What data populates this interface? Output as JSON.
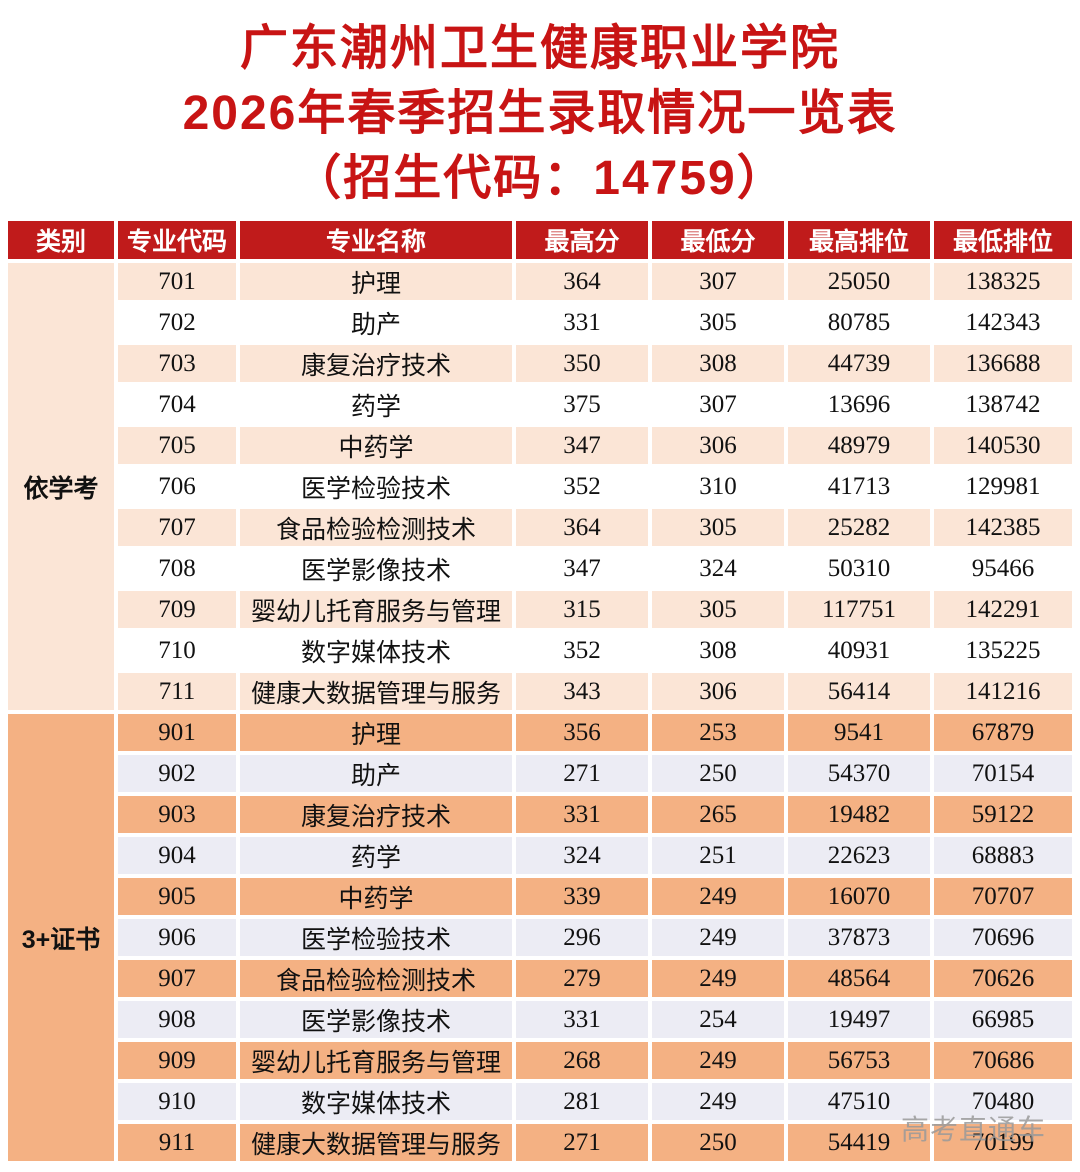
{
  "title": {
    "line1": "广东潮州卫生健康职业学院",
    "line2": "2026年春季招生录取情况一览表",
    "line3": "（招生代码：14759）"
  },
  "table": {
    "headers": [
      "类别",
      "专业代码",
      "专业名称",
      "最高分",
      "最低分",
      "最高排位",
      "最低排位"
    ],
    "sections": [
      {
        "category": "依学考",
        "rows": [
          [
            "701",
            "护理",
            "364",
            "307",
            "25050",
            "138325"
          ],
          [
            "702",
            "助产",
            "331",
            "305",
            "80785",
            "142343"
          ],
          [
            "703",
            "康复治疗技术",
            "350",
            "308",
            "44739",
            "136688"
          ],
          [
            "704",
            "药学",
            "375",
            "307",
            "13696",
            "138742"
          ],
          [
            "705",
            "中药学",
            "347",
            "306",
            "48979",
            "140530"
          ],
          [
            "706",
            "医学检验技术",
            "352",
            "310",
            "41713",
            "129981"
          ],
          [
            "707",
            "食品检验检测技术",
            "364",
            "305",
            "25282",
            "142385"
          ],
          [
            "708",
            "医学影像技术",
            "347",
            "324",
            "50310",
            "95466"
          ],
          [
            "709",
            "婴幼儿托育服务与管理",
            "315",
            "305",
            "117751",
            "142291"
          ],
          [
            "710",
            "数字媒体技术",
            "352",
            "308",
            "40931",
            "135225"
          ],
          [
            "711",
            "健康大数据管理与服务",
            "343",
            "306",
            "56414",
            "141216"
          ]
        ]
      },
      {
        "category": "3+证书",
        "rows": [
          [
            "901",
            "护理",
            "356",
            "253",
            "9541",
            "67879"
          ],
          [
            "902",
            "助产",
            "271",
            "250",
            "54370",
            "70154"
          ],
          [
            "903",
            "康复治疗技术",
            "331",
            "265",
            "19482",
            "59122"
          ],
          [
            "904",
            "药学",
            "324",
            "251",
            "22623",
            "68883"
          ],
          [
            "905",
            "中药学",
            "339",
            "249",
            "16070",
            "70707"
          ],
          [
            "906",
            "医学检验技术",
            "296",
            "249",
            "37873",
            "70696"
          ],
          [
            "907",
            "食品检验检测技术",
            "279",
            "249",
            "48564",
            "70626"
          ],
          [
            "908",
            "医学影像技术",
            "331",
            "254",
            "19497",
            "66985"
          ],
          [
            "909",
            "婴幼儿托育服务与管理",
            "268",
            "249",
            "56753",
            "70686"
          ],
          [
            "910",
            "数字媒体技术",
            "281",
            "249",
            "47510",
            "70480"
          ],
          [
            "911",
            "健康大数据管理与服务",
            "271",
            "250",
            "54419",
            "70199"
          ]
        ]
      }
    ]
  },
  "watermark": "高考直通车",
  "colors": {
    "header_red": "#c01b1b",
    "title_red": "#c81414",
    "section1_stripe": "#fbe5d6",
    "section1_plain": "#ffffff",
    "section2_stripe": "#f4b183",
    "section2_plain": "#ececf4",
    "watermark_gray": "#9a9a9a"
  }
}
